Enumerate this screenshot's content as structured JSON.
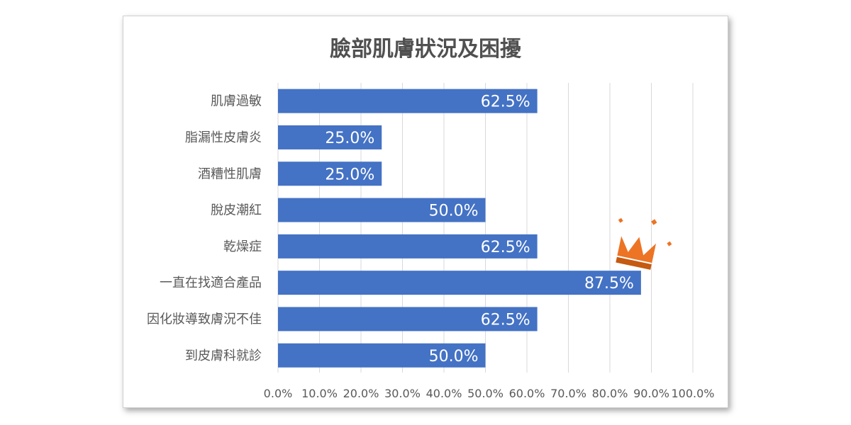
{
  "chart_data": {
    "type": "bar",
    "orientation": "horizontal",
    "title": "臉部肌膚狀況及困擾",
    "categories": [
      "肌膚過敏",
      "脂漏性皮膚炎",
      "酒糟性肌膚",
      "脫皮潮紅",
      "乾燥症",
      "一直在找適合產品",
      "因化妝導致膚況不佳",
      "到皮膚科就診"
    ],
    "values": [
      62.5,
      25.0,
      25.0,
      50.0,
      62.5,
      87.5,
      62.5,
      50.0
    ],
    "data_labels": [
      "62.5%",
      "25.0%",
      "25.0%",
      "50.0%",
      "62.5%",
      "87.5%",
      "62.5%",
      "50.0%"
    ],
    "x_ticks": [
      "0.0%",
      "10.0%",
      "20.0%",
      "30.0%",
      "40.0%",
      "50.0%",
      "60.0%",
      "70.0%",
      "80.0%",
      "90.0%",
      "100.0%"
    ],
    "xlim": [
      0,
      100
    ],
    "grid": true,
    "legend": "none",
    "highlight_category": "一直在找適合產品",
    "highlight_icon": "crown-icon",
    "colors": {
      "bar": "#4472C4",
      "crown": "#EC7424",
      "crown_band": "#C55A11"
    }
  }
}
